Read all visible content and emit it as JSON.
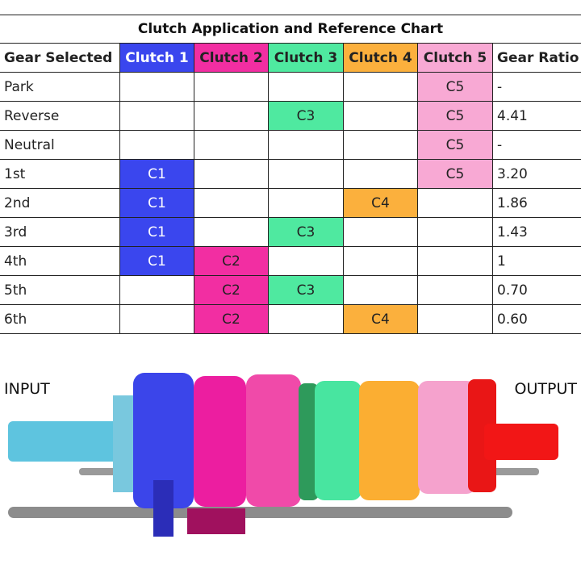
{
  "table": {
    "title": "Clutch Application and Reference Chart",
    "header": [
      "Gear Selected",
      "Clutch 1",
      "Clutch 2",
      "Clutch 3",
      "Clutch 4",
      "Clutch 5",
      "Gear Ratio"
    ],
    "clutch_colors": [
      "#3a46ee",
      "#f22ea2",
      "#4fe9a0",
      "#fbb03d",
      "#f8a9d4"
    ],
    "rows": [
      [
        "Park",
        null,
        null,
        null,
        null,
        "C5",
        "-"
      ],
      [
        "Reverse",
        null,
        null,
        "C3",
        null,
        "C5",
        "4.41"
      ],
      [
        "Neutral",
        null,
        null,
        null,
        null,
        "C5",
        "-"
      ],
      [
        "1st",
        "C1",
        null,
        null,
        null,
        "C5",
        "3.20"
      ],
      [
        "2nd",
        "C1",
        null,
        null,
        "C4",
        null,
        "1.86"
      ],
      [
        "3rd",
        "C1",
        null,
        "C3",
        null,
        null,
        "1.43"
      ],
      [
        "4th",
        "C1",
        "C2",
        null,
        null,
        null,
        "1"
      ],
      [
        "5th",
        null,
        "C2",
        "C3",
        null,
        null,
        "0.70"
      ],
      [
        "6th",
        null,
        "C2",
        null,
        "C4",
        null,
        "0.60"
      ]
    ]
  },
  "illustration": {
    "input_label": "INPUT",
    "output_label": "OUTPUT"
  }
}
